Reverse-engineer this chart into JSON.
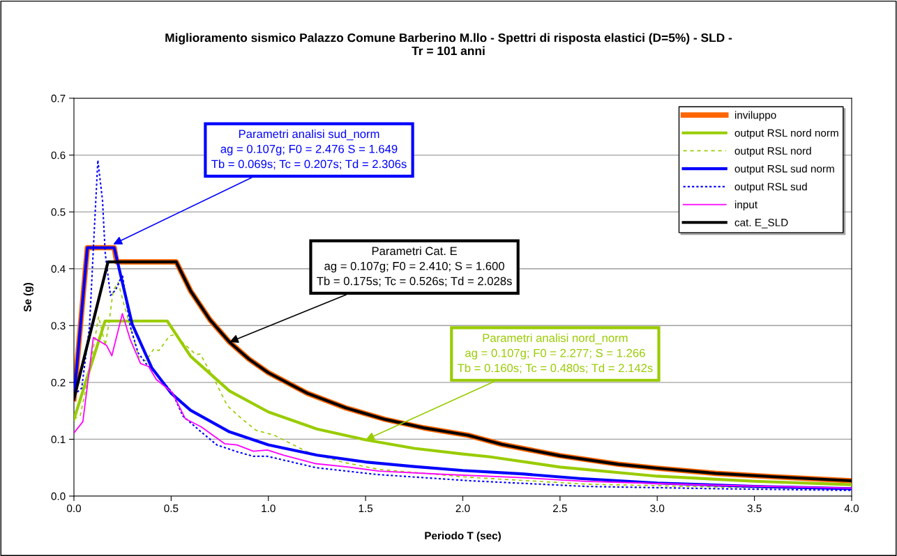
{
  "chart_data": {
    "type": "line",
    "title": "Miglioramento sismico Palazzo Comune Barberino M.llo - Spettri di risposta elastici (D=5%) - SLD -\nTr = 101 anni",
    "xlabel": "Periodo T (sec)",
    "ylabel": "Se (g)",
    "xlim": [
      0,
      4
    ],
    "ylim": [
      0,
      0.7
    ],
    "xticks": [
      {
        "value": 0,
        "label": "0.0"
      },
      {
        "value": 0.5,
        "label": "0.5"
      },
      {
        "value": 1,
        "label": "1.0"
      },
      {
        "value": 1.5,
        "label": "1.5"
      },
      {
        "value": 2,
        "label": "2.0"
      },
      {
        "value": 2.5,
        "label": "2.5"
      },
      {
        "value": 3,
        "label": "3.0"
      },
      {
        "value": 3.5,
        "label": "3.5"
      },
      {
        "value": 4,
        "label": "4.0"
      }
    ],
    "yticks": [
      {
        "value": 0,
        "label": "0.0"
      },
      {
        "value": 0.1,
        "label": "0.1"
      },
      {
        "value": 0.2,
        "label": "0.2"
      },
      {
        "value": 0.3,
        "label": "0.3"
      },
      {
        "value": 0.4,
        "label": "0.4"
      },
      {
        "value": 0.5,
        "label": "0.5"
      },
      {
        "value": 0.6,
        "label": "0.6"
      },
      {
        "value": 0.7,
        "label": "0.7"
      }
    ],
    "grid": "y",
    "legend": "top right",
    "marker": "none",
    "series": [
      {
        "name": "inviluppo",
        "color": "#ff6600",
        "line_style": "solid",
        "x": [
          0,
          0.069,
          0.207,
          0.22,
          0.526,
          0.6,
          0.7,
          0.8,
          0.9,
          1.0,
          1.2,
          1.4,
          1.6,
          1.8,
          2.028,
          2.2,
          2.5,
          2.8,
          3.0,
          3.3,
          3.6,
          4.0
        ],
        "values": [
          0.171,
          0.437,
          0.437,
          0.412,
          0.412,
          0.361,
          0.31,
          0.271,
          0.241,
          0.217,
          0.181,
          0.155,
          0.135,
          0.12,
          0.107,
          0.091,
          0.071,
          0.056,
          0.049,
          0.04,
          0.034,
          0.027
        ]
      },
      {
        "name": "output RSL nord norm",
        "color": "#99cc00",
        "line_style": "solid",
        "x": [
          0,
          0.16,
          0.48,
          0.6,
          0.8,
          1.0,
          1.25,
          1.5,
          1.75,
          2.0,
          2.142,
          2.5,
          3.0,
          3.5,
          4.0
        ],
        "values": [
          0.135,
          0.308,
          0.308,
          0.246,
          0.185,
          0.148,
          0.118,
          0.099,
          0.084,
          0.074,
          0.069,
          0.051,
          0.035,
          0.026,
          0.02
        ]
      },
      {
        "name": "output RSL nord",
        "color": "#99cc00",
        "line_style": "dashed",
        "x": [
          0,
          0.032,
          0.08,
          0.127,
          0.161,
          0.181,
          0.202,
          0.228,
          0.255,
          0.29,
          0.336,
          0.371,
          0.411,
          0.437,
          0.492,
          0.52,
          0.56,
          0.627,
          0.65,
          0.722,
          0.789,
          0.857,
          0.935,
          1.031,
          1.198,
          1.378,
          1.569,
          2.035,
          2.633,
          3.3,
          4.0
        ],
        "values": [
          0.136,
          0.141,
          0.219,
          0.316,
          0.265,
          0.307,
          0.362,
          0.376,
          0.34,
          0.298,
          0.242,
          0.238,
          0.259,
          0.256,
          0.282,
          0.284,
          0.27,
          0.249,
          0.25,
          0.205,
          0.159,
          0.138,
          0.116,
          0.107,
          0.078,
          0.06,
          0.047,
          0.033,
          0.021,
          0.016,
          0.012
        ]
      },
      {
        "name": "output RSL sud norm",
        "color": "#0000ff",
        "line_style": "solid",
        "x": [
          0,
          0.069,
          0.207,
          0.3,
          0.4,
          0.5,
          0.6,
          0.8,
          1.0,
          1.25,
          1.5,
          1.75,
          2.0,
          2.306,
          2.6,
          3.0,
          3.5,
          4.0
        ],
        "values": [
          0.171,
          0.437,
          0.437,
          0.302,
          0.226,
          0.181,
          0.151,
          0.113,
          0.09,
          0.072,
          0.06,
          0.052,
          0.045,
          0.039,
          0.031,
          0.023,
          0.017,
          0.013
        ]
      },
      {
        "name": "output RSL sud",
        "color": "#0000ff",
        "line_style": "dotted",
        "x": [
          0,
          0.04,
          0.08,
          0.1,
          0.123,
          0.147,
          0.161,
          0.188,
          0.215,
          0.249,
          0.269,
          0.29,
          0.33,
          0.371,
          0.424,
          0.506,
          0.56,
          0.654,
          0.735,
          0.839,
          0.923,
          0.995,
          1.245,
          1.557,
          2.035,
          2.633,
          3.3,
          4.0
        ],
        "values": [
          0.178,
          0.19,
          0.298,
          0.436,
          0.591,
          0.52,
          0.427,
          0.353,
          0.363,
          0.39,
          0.344,
          0.298,
          0.252,
          0.233,
          0.215,
          0.182,
          0.141,
          0.113,
          0.09,
          0.078,
          0.07,
          0.07,
          0.05,
          0.038,
          0.027,
          0.017,
          0.013,
          0.01
        ]
      },
      {
        "name": "input",
        "color": "#ff00ff",
        "line_style": "solid",
        "x": [
          0,
          0.046,
          0.1,
          0.168,
          0.195,
          0.249,
          0.29,
          0.343,
          0.384,
          0.424,
          0.506,
          0.573,
          0.654,
          0.776,
          0.839,
          0.923,
          0.995,
          1.079,
          1.245,
          1.413,
          1.569,
          1.916,
          2.274,
          2.633,
          3.3,
          4.0
        ],
        "values": [
          0.111,
          0.131,
          0.279,
          0.265,
          0.247,
          0.321,
          0.275,
          0.233,
          0.228,
          0.205,
          0.182,
          0.136,
          0.122,
          0.092,
          0.09,
          0.079,
          0.081,
          0.072,
          0.057,
          0.051,
          0.044,
          0.038,
          0.033,
          0.026,
          0.019,
          0.014
        ]
      },
      {
        "name": "cat. E_SLD",
        "color": "#000000",
        "line_style": "solid",
        "x": [
          0,
          0.175,
          0.526,
          0.6,
          0.7,
          0.8,
          0.9,
          1.0,
          1.2,
          1.4,
          1.6,
          1.8,
          2.028,
          2.2,
          2.5,
          2.8,
          3.0,
          3.3,
          3.6,
          4.0
        ],
        "values": [
          0.171,
          0.412,
          0.412,
          0.361,
          0.31,
          0.271,
          0.241,
          0.217,
          0.181,
          0.155,
          0.135,
          0.12,
          0.107,
          0.091,
          0.071,
          0.056,
          0.049,
          0.04,
          0.034,
          0.027
        ]
      }
    ],
    "annotations": [
      {
        "text": "Parametri analisi sud_norm\nag = 0.107g; F0 = 2.476 S = 1.649\nTb = 0.069s; Tc = 0.207s; Td = 2.306s",
        "x": 0.202,
        "y": 0.443
      },
      {
        "text": "Parametri Cat. E\nag = 0.107g; F0 = 2.410; S = 1.600\nTb = 0.175s; Tc = 0.526s; Td = 2.028s",
        "x": 0.8,
        "y": 0.271
      },
      {
        "text": "Parametri analisi nord_norm\nag = 0.107g; F0 = 2.277; S = 1.266\nTb = 0.160s; Tc = 0.480s; Td = 2.142s",
        "x": 1.5,
        "y": 0.099
      }
    ]
  }
}
